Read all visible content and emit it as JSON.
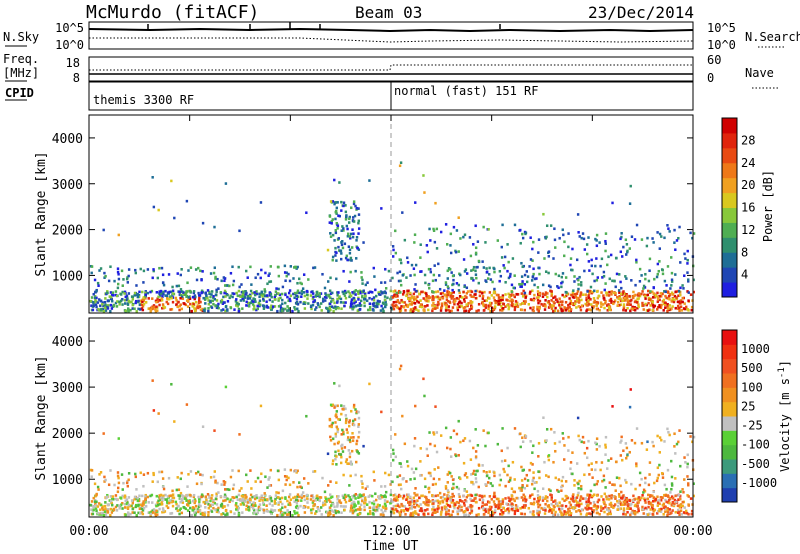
{
  "header": {
    "station": "McMurdo (fitACF)",
    "beam": "Beam 03",
    "date": "23/Dec/2014"
  },
  "status_panels": {
    "nsky_label": "N.Sky",
    "nsky_ticks": [
      "10^5",
      "10^0"
    ],
    "nsearch_label": "N.Search",
    "nsearch_ticks": [
      "10^5",
      "10^0"
    ],
    "freq_label": "Freq.",
    "freq_unit": "[MHz]",
    "freq_ticks": [
      "18",
      "8"
    ],
    "nave_label": "Nave",
    "nave_ticks": [
      "60",
      "0"
    ],
    "cpid_label": "CPID",
    "cpid_segments": [
      {
        "text": "themis 3300 RF",
        "start": "00:00"
      },
      {
        "text": "normal (fast) 151 RF",
        "start": "12:00"
      }
    ]
  },
  "chart_data": [
    {
      "type": "heatmap",
      "name": "power",
      "ylabel": "Slant Range [km]",
      "ylim": [
        180,
        4500
      ],
      "yticks": [
        1000,
        2000,
        3000,
        4000
      ],
      "xlim_hours": [
        0,
        24
      ],
      "colorbar": {
        "label": "Power [dB]",
        "ticks": [
          "4",
          "8",
          "12",
          "16",
          "20",
          "24",
          "28"
        ],
        "colors": [
          "#1f1fe0",
          "#1f46b4",
          "#1e6e96",
          "#2f8f6e",
          "#4fae52",
          "#88c83a",
          "#d9c81e",
          "#f0a020",
          "#ee7818",
          "#e84a12",
          "#e0240c",
          "#d00000"
        ]
      }
    },
    {
      "type": "heatmap",
      "name": "velocity",
      "ylabel": "Slant Range [km]",
      "ylim": [
        180,
        4500
      ],
      "yticks": [
        1000,
        2000,
        3000,
        4000
      ],
      "xlim_hours": [
        0,
        24
      ],
      "colorbar": {
        "label": "Velocity [m s",
        "label_sup": "-1",
        "label_end": "]",
        "ticks": [
          "1000",
          "500",
          "100",
          "25",
          "-25",
          "-100",
          "-500",
          "-1000"
        ],
        "colors": [
          "#1f3fb0",
          "#2a6fb4",
          "#3c9a7c",
          "#4db83e",
          "#5ad036",
          "#c0c0c0",
          "#f0b020",
          "#f09020",
          "#f07020",
          "#f05020",
          "#f03010",
          "#e81010"
        ]
      }
    }
  ],
  "x_axis": {
    "ticks": [
      "00:00",
      "04:00",
      "08:00",
      "12:00",
      "16:00",
      "20:00",
      "00:00"
    ],
    "label": "Time UT"
  }
}
